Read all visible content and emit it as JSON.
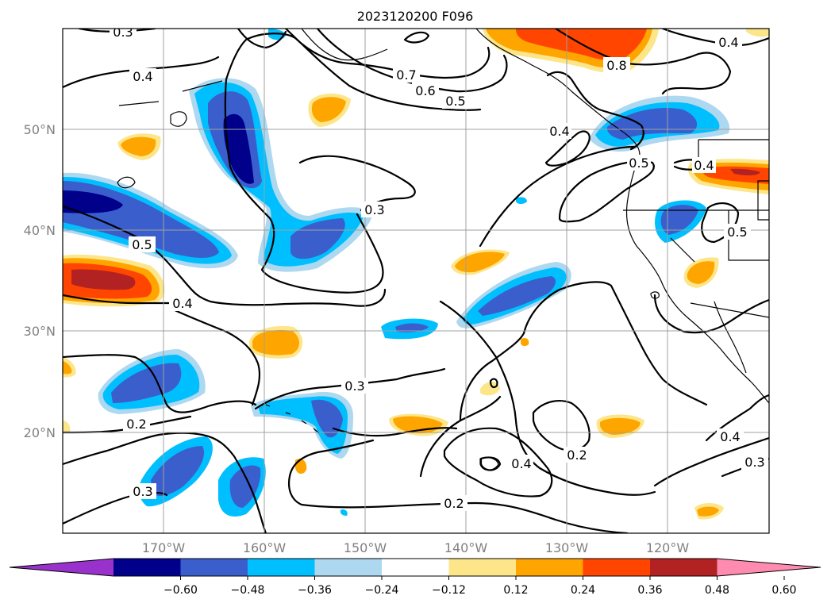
{
  "title": "2023120200 F096",
  "lat_labels": [
    "20°N",
    "30°N",
    "40°N",
    "50°N"
  ],
  "lon_labels": [
    "170°W",
    "160°W",
    "150°W",
    "140°W",
    "130°W",
    "120°W"
  ],
  "contour_labels": [
    "0.4",
    "0.7",
    "0.6",
    "0.5",
    "0.4",
    "0.8",
    "0.4",
    "0.5",
    "0.4",
    "0.3",
    "0.5",
    "0.5",
    "0.4",
    "0.3",
    "0.2",
    "0.3",
    "0.4",
    "0.2",
    "0.2",
    "0.4",
    "0.3",
    "0.3"
  ],
  "colorbar": {
    "ticks": [
      "−0.60",
      "−0.48",
      "−0.36",
      "−0.24",
      "−0.12",
      "0.12",
      "0.24",
      "0.36",
      "0.48",
      "0.60"
    ],
    "colors": [
      "#9932cc",
      "#00008b",
      "#3a5fcd",
      "#00bfff",
      "#add8f0",
      "#ffffff",
      "#fde68a",
      "#ffa500",
      "#ff4500",
      "#b22222",
      "#ff8cb0"
    ],
    "extend": "both"
  }
}
